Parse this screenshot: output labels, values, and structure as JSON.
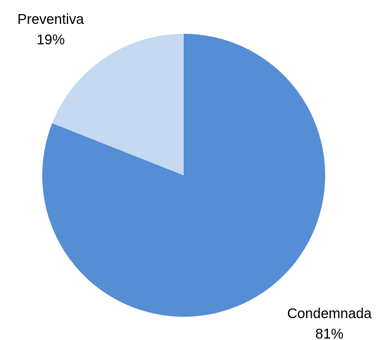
{
  "chart_data": {
    "type": "pie",
    "title": "",
    "slices": [
      {
        "label": "Condemnada",
        "value": 81,
        "value_label": "81%",
        "color": "#558ED5"
      },
      {
        "label": "Preventiva",
        "value": 19,
        "value_label": "19%",
        "color": "#C6D9F1"
      }
    ],
    "start_angle_degrees": 0,
    "direction": "clockwise",
    "legend": "none",
    "data_labels": "outside"
  }
}
